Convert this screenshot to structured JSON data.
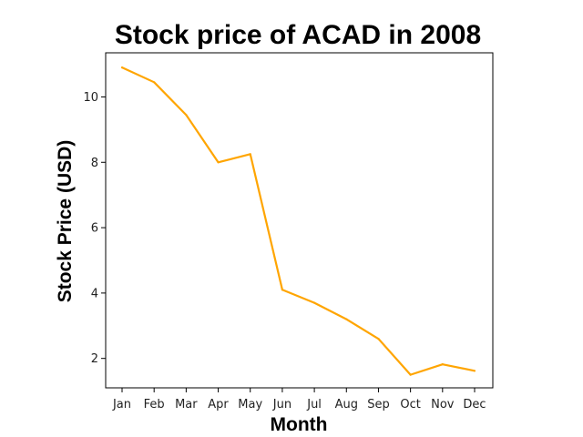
{
  "chart_data": {
    "type": "line",
    "title": "Stock price of ACAD in 2008",
    "xlabel": "Month",
    "ylabel": "Stock Price (USD)",
    "categories": [
      "Jan",
      "Feb",
      "Mar",
      "Apr",
      "May",
      "Jun",
      "Jul",
      "Aug",
      "Sep",
      "Oct",
      "Nov",
      "Dec"
    ],
    "series": [
      {
        "values": [
          10.9,
          10.45,
          9.45,
          8.0,
          8.25,
          4.1,
          3.7,
          3.2,
          2.6,
          1.5,
          1.82,
          1.62
        ],
        "color": "#FFA500"
      }
    ],
    "yticks": [
      2,
      4,
      6,
      8,
      10
    ],
    "ylim": [
      1.1,
      11.35
    ],
    "grid": false,
    "legend": false
  }
}
